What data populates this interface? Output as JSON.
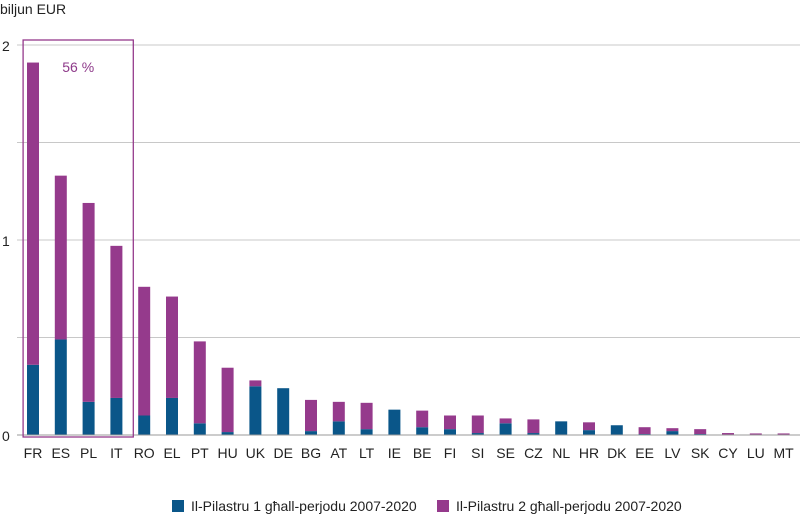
{
  "chart_data": {
    "type": "bar",
    "stacked": true,
    "ylabel": "biljun EUR",
    "ylim": [
      0,
      2
    ],
    "yticks": [
      "0",
      "1",
      "2"
    ],
    "grid": true,
    "legend_position": "bottom",
    "categories": [
      "FR",
      "ES",
      "PL",
      "IT",
      "RO",
      "EL",
      "PT",
      "HU",
      "UK",
      "DE",
      "BG",
      "AT",
      "LT",
      "IE",
      "BE",
      "FI",
      "SI",
      "SE",
      "CZ",
      "NL",
      "HR",
      "DK",
      "EE",
      "LV",
      "SK",
      "CY",
      "LU",
      "MT"
    ],
    "series": [
      {
        "name": "Il-Pilastru 1 għall-perjodu 2007-2020",
        "color": "#0a5689",
        "values": [
          0.36,
          0.49,
          0.17,
          0.19,
          0.1,
          0.19,
          0.06,
          0.015,
          0.25,
          0.24,
          0.02,
          0.07,
          0.03,
          0.13,
          0.04,
          0.03,
          0.01,
          0.06,
          0.01,
          0.07,
          0.025,
          0.05,
          0.005,
          0.02,
          0.005,
          0.002,
          0.002,
          0.002
        ]
      },
      {
        "name": "Il-Pilastru 2 għall-perjodu 2007-2020",
        "color": "#953a8c",
        "values": [
          1.55,
          0.84,
          1.02,
          0.78,
          0.66,
          0.52,
          0.42,
          0.33,
          0.03,
          0.0,
          0.16,
          0.1,
          0.135,
          0.0,
          0.085,
          0.07,
          0.09,
          0.025,
          0.07,
          0.0,
          0.04,
          0.0,
          0.035,
          0.015,
          0.025,
          0.008,
          0.006,
          0.006
        ]
      }
    ],
    "annotation": {
      "text": "56 %",
      "covers_categories": [
        "FR",
        "ES",
        "PL",
        "IT"
      ]
    }
  }
}
